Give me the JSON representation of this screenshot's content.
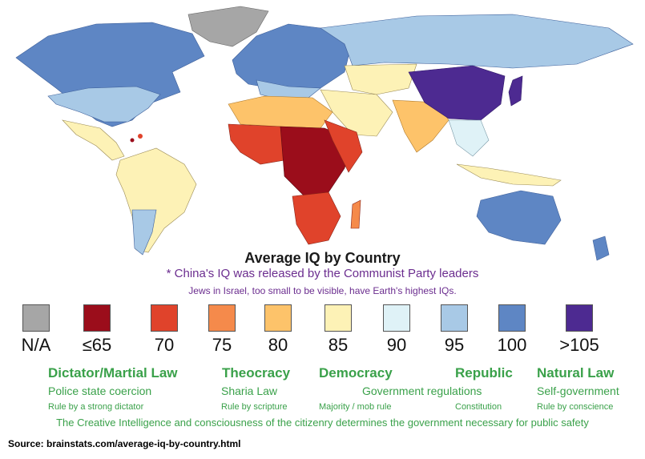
{
  "title": "Average IQ by Country",
  "note_china": "* China's IQ was released by the Communist Party leaders",
  "note_israel": "Jews in Israel, too small to be visible, have Earth's highest IQs.",
  "legend": [
    {
      "label": "N/A",
      "color": "#a6a6a6"
    },
    {
      "label": "≤65",
      "color": "#9b0d1b"
    },
    {
      "label": "70",
      "color": "#e0432b"
    },
    {
      "label": "75",
      "color": "#f58a4b"
    },
    {
      "label": "80",
      "color": "#fdc36a"
    },
    {
      "label": "85",
      "color": "#fdf2b6"
    },
    {
      "label": "90",
      "color": "#dff2f7"
    },
    {
      "label": "95",
      "color": "#a8c9e6"
    },
    {
      "label": "100",
      "color": "#5e86c4"
    },
    {
      "label": ">105",
      "color": "#4d2a91"
    }
  ],
  "governments": [
    {
      "name": "Dictator/Martial Law",
      "description": "Police state coercion",
      "rule": "Rule by a strong dictator"
    },
    {
      "name": "Theocracy",
      "description": "Sharia Law",
      "rule": "Rule by scripture"
    },
    {
      "name": "Democracy",
      "description": "Government regulations",
      "rule": "Majority / mob rule"
    },
    {
      "name": "Republic",
      "description": "",
      "rule": "Constitution"
    },
    {
      "name": "Natural Law",
      "description": "Self-government",
      "rule": "Rule by conscience"
    }
  ],
  "footer": "The Creative Intelligence and consciousness of the citizenry determines the government necessary for public safety",
  "source": "Source: brainstats.com/average-iq-by-country.html"
}
